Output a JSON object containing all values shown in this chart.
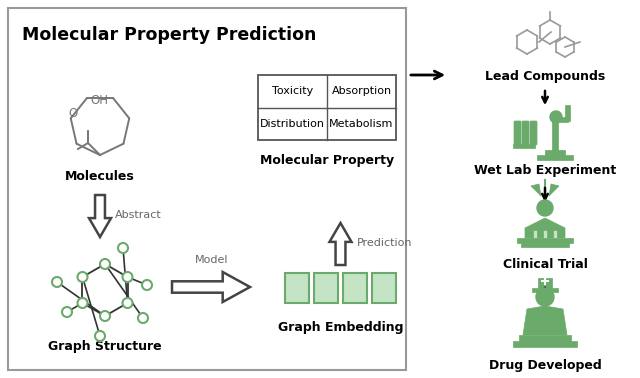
{
  "bg_color": "#ffffff",
  "green_color": "#6aaa6a",
  "green_fill": "#8dc98d",
  "green_light": "#c5e3c5",
  "gray_line": "#888888",
  "dark_text": "#222222",
  "gray_text": "#666666",
  "title": "Molecular Property Prediction",
  "labels": {
    "molecules": "Molecules",
    "molecular_property": "Molecular Property",
    "graph_structure": "Graph Structure",
    "graph_embedding": "Graph Embedding",
    "abstract": "Abstract",
    "model": "Model",
    "prediction": "Prediction",
    "lead_compounds": "Lead Compounds",
    "wet_lab": "Wet Lab Experiment",
    "clinical_trial": "Clinical Trial",
    "drug_developed": "Drug Developed"
  },
  "table_cells": [
    [
      "Toxicity",
      "Absorption"
    ],
    [
      "Distribution",
      "Metabolism"
    ]
  ],
  "figsize": [
    6.4,
    3.78
  ],
  "dpi": 100
}
